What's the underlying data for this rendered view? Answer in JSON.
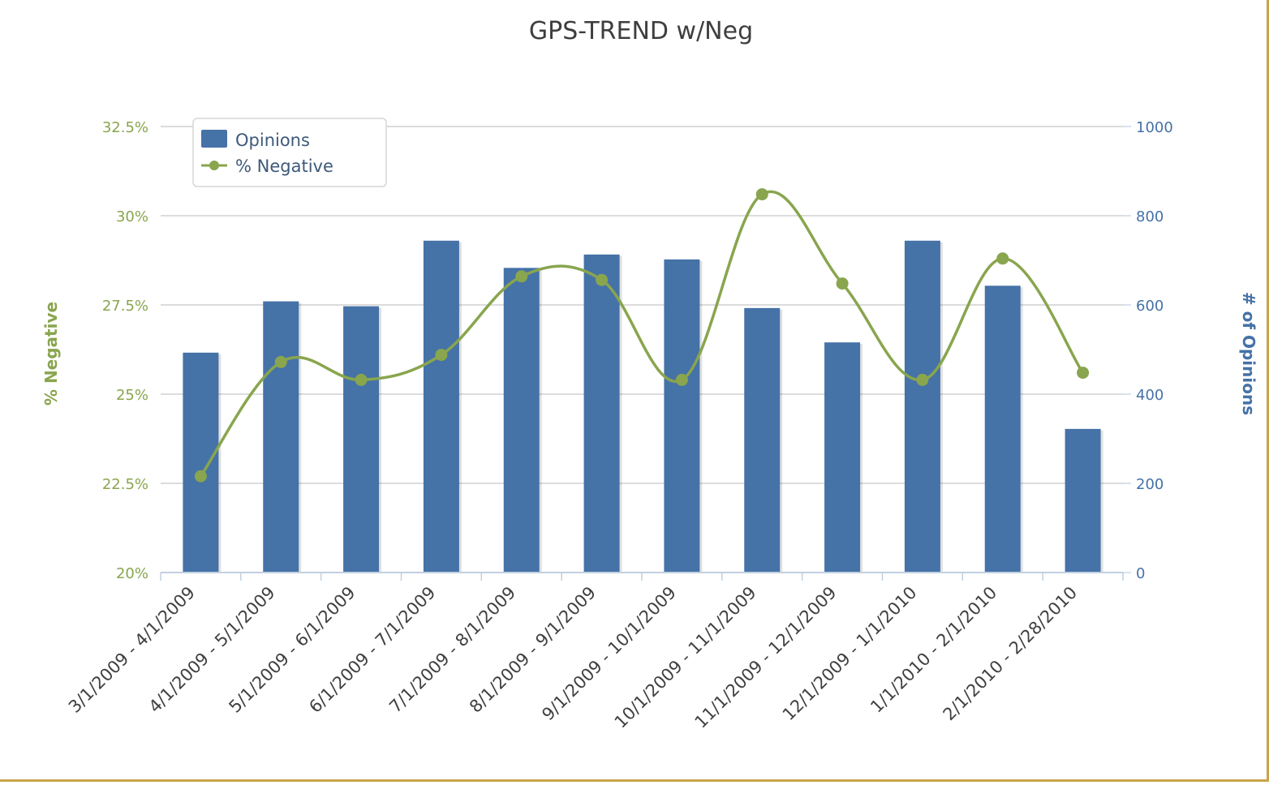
{
  "chart_data": {
    "type": "bar",
    "title": "GPS-TREND w/Neg",
    "categories": [
      "3/1/2009 - 4/1/2009",
      "4/1/2009 - 5/1/2009",
      "5/1/2009 - 6/1/2009",
      "6/1/2009 - 7/1/2009",
      "7/1/2009 - 8/1/2009",
      "8/1/2009 - 9/1/2009",
      "9/1/2009 - 10/1/2009",
      "10/1/2009 - 11/1/2009",
      "11/1/2009 - 12/1/2009",
      "12/1/2009 - 1/1/2010",
      "1/1/2010 - 2/1/2010",
      "2/1/2010 - 2/28/2010"
    ],
    "series": [
      {
        "name": "Opinions",
        "type": "bar",
        "axis": "right",
        "color": "#4572a7",
        "values": [
          493,
          608,
          597,
          744,
          683,
          713,
          702,
          593,
          516,
          744,
          643,
          322
        ]
      },
      {
        "name": "% Negative",
        "type": "line",
        "axis": "left",
        "color": "#89a54e",
        "values": [
          22.7,
          25.9,
          25.4,
          26.1,
          28.3,
          28.2,
          25.4,
          30.6,
          28.1,
          25.4,
          28.8,
          25.6
        ]
      }
    ],
    "y_left": {
      "label": "% Negative",
      "range": [
        20,
        32.5
      ],
      "ticks": [
        20,
        22.5,
        25,
        27.5,
        30,
        32.5
      ],
      "tick_labels": [
        "20%",
        "22.5%",
        "25%",
        "27.5%",
        "30%",
        "32.5%"
      ],
      "color": "#89a54e"
    },
    "y_right": {
      "label": "# of Opinions",
      "range": [
        0,
        1000
      ],
      "ticks": [
        0,
        200,
        400,
        600,
        800,
        1000
      ],
      "tick_labels": [
        "0",
        "200",
        "400",
        "600",
        "800",
        "1000"
      ],
      "color": "#4572a7"
    },
    "grid": true,
    "legend_position": "top-left"
  }
}
